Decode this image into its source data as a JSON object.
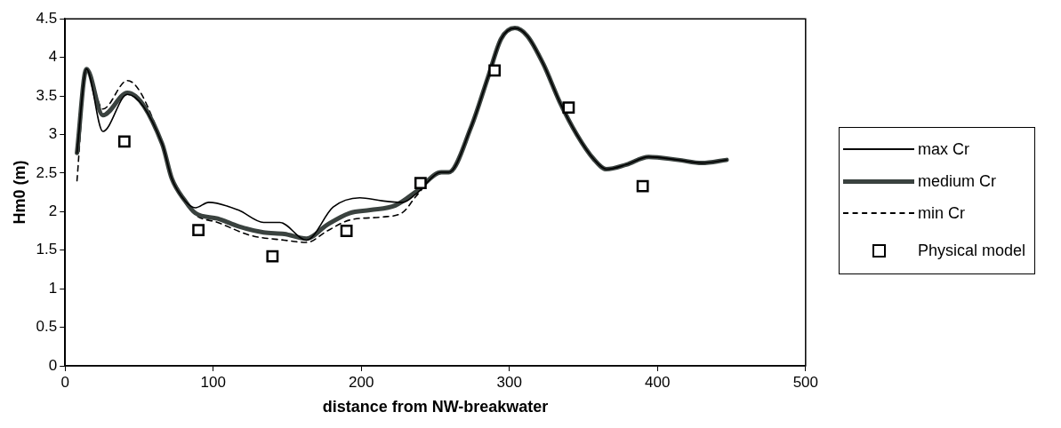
{
  "chart_data": {
    "type": "line",
    "xlabel": "distance from NW-breakwater",
    "ylabel": "Hm0 (m)",
    "xlim": [
      0,
      500
    ],
    "ylim": [
      0,
      4.5
    ],
    "xticks": [
      0,
      100,
      200,
      300,
      400,
      500
    ],
    "yticks": [
      0,
      0.5,
      1,
      1.5,
      2,
      2.5,
      3,
      3.5,
      4,
      4.5
    ],
    "grid": false,
    "legend": "right",
    "series": [
      {
        "name": "max Cr",
        "color": "#000000",
        "line_style": "solid",
        "x": [
          8,
          14.4,
          25.5,
          42,
          65.5,
          72,
          81,
          88,
          97,
          117,
          134,
          145,
          163,
          181,
          199,
          214,
          228,
          237,
          254,
          259,
          274,
          285.5,
          294.4,
          303.7,
          312,
          323,
          334,
          345.5,
          357,
          365.5,
          379,
          394,
          414,
          430,
          446.7
        ],
        "values": [
          2.76,
          3.85,
          3.04,
          3.52,
          2.88,
          2.43,
          2.14,
          2.05,
          2.12,
          2.02,
          1.86,
          1.86,
          1.63,
          2.06,
          2.18,
          2.14,
          2.12,
          2.23,
          2.51,
          2.51,
          3.09,
          3.74,
          4.24,
          4.38,
          4.28,
          3.91,
          3.42,
          3,
          2.68,
          2.55,
          2.61,
          2.71,
          2.67,
          2.63,
          2.67
        ]
      },
      {
        "name": "medium Cr",
        "color": "#3a423f",
        "line_style": "solid",
        "x": [
          8,
          14.4,
          25.5,
          42,
          65.5,
          72,
          81,
          88,
          103,
          117,
          134,
          148,
          163,
          177,
          192,
          206,
          223,
          237,
          254,
          259,
          274,
          285.5,
          294.4,
          303.7,
          312,
          323,
          334,
          345.5,
          357,
          365.5,
          379,
          394,
          414,
          430,
          446.7
        ],
        "values": [
          2.76,
          3.85,
          3.25,
          3.54,
          2.88,
          2.43,
          2.14,
          1.98,
          1.91,
          1.81,
          1.73,
          1.71,
          1.65,
          1.83,
          1.98,
          2.02,
          2.08,
          2.26,
          2.51,
          2.51,
          3.09,
          3.74,
          4.24,
          4.38,
          4.28,
          3.91,
          3.42,
          3,
          2.68,
          2.55,
          2.61,
          2.71,
          2.67,
          2.63,
          2.67
        ]
      },
      {
        "name": "min Cr",
        "color": "#000000",
        "line_style": "dashed",
        "x": [
          8,
          14.4,
          25.5,
          42,
          65.5,
          72,
          81,
          88,
          103,
          125.5,
          148,
          163,
          177,
          192,
          214,
          228,
          237,
          254,
          259,
          274,
          285.5,
          294.4,
          303.7,
          312,
          323,
          334,
          345.5,
          357,
          365.5,
          379,
          394,
          414,
          430,
          446.7
        ],
        "values": [
          2.4,
          3.85,
          3.33,
          3.7,
          2.88,
          2.43,
          2.14,
          1.96,
          1.86,
          1.69,
          1.63,
          1.6,
          1.75,
          1.89,
          1.93,
          1.99,
          2.2,
          2.51,
          2.51,
          3.09,
          3.74,
          4.24,
          4.38,
          4.28,
          3.91,
          3.42,
          3,
          2.68,
          2.55,
          2.61,
          2.71,
          2.67,
          2.63,
          2.67
        ]
      },
      {
        "name": "Physical model",
        "type": "scatter",
        "marker": "square",
        "color": "#000000",
        "x": [
          40,
          90,
          140,
          190,
          240,
          290,
          340,
          390
        ],
        "values": [
          2.91,
          1.76,
          1.42,
          1.75,
          2.37,
          3.83,
          3.35,
          2.33
        ]
      }
    ]
  }
}
